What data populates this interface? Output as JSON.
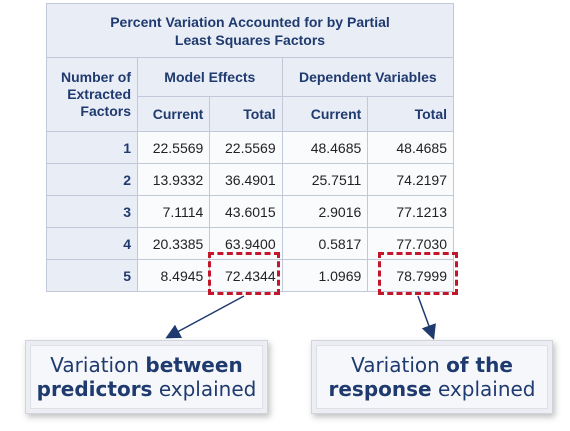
{
  "table": {
    "title_line1": "Percent Variation Accounted for by Partial",
    "title_line2": "Least Squares Factors",
    "stub_header_line1": "Number of",
    "stub_header_line2": "Extracted",
    "stub_header_line3": "Factors",
    "group_model_effects": "Model Effects",
    "group_dependent": "Dependent Variables",
    "col_current": "Current",
    "col_total": "Total",
    "rows": [
      {
        "factor": "1",
        "me_current": "22.5569",
        "me_total": "22.5569",
        "dv_current": "48.4685",
        "dv_total": "48.4685"
      },
      {
        "factor": "2",
        "me_current": "13.9332",
        "me_total": "36.4901",
        "dv_current": "25.7511",
        "dv_total": "74.2197"
      },
      {
        "factor": "3",
        "me_current": "7.1114",
        "me_total": "43.6015",
        "dv_current": "2.9016",
        "dv_total": "77.1213"
      },
      {
        "factor": "4",
        "me_current": "20.3385",
        "me_total": "63.9400",
        "dv_current": "0.5817",
        "dv_total": "77.7030"
      },
      {
        "factor": "5",
        "me_current": "8.4945",
        "me_total": "72.4344",
        "dv_current": "1.0969",
        "dv_total": "78.7999"
      }
    ]
  },
  "highlight_color": "#c4162a",
  "callouts": {
    "left": {
      "pre": "Variation ",
      "bold1": "between",
      "bold2": "predictors",
      "post": " explained"
    },
    "right": {
      "pre": "Variation ",
      "bold1": "of the",
      "bold2": "response",
      "post": " explained"
    }
  }
}
